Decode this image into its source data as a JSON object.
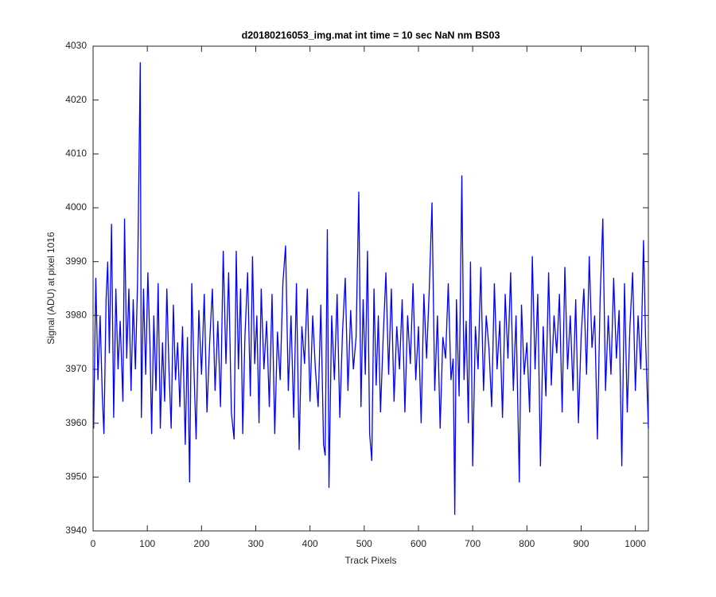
{
  "chart_data": {
    "type": "line",
    "title": "d20180216053_img.mat int time = 10 sec  NaN nm BS03",
    "x_label": "Track Pixels",
    "y_label": "Signal (ADU) at pixel 1016",
    "xlim": [
      0,
      1024
    ],
    "ylim": [
      3940,
      4030
    ],
    "xticks": [
      0,
      100,
      200,
      300,
      400,
      500,
      600,
      700,
      800,
      900,
      1000
    ],
    "yticks": [
      3940,
      3950,
      3960,
      3970,
      3980,
      3990,
      4000,
      4010,
      4020,
      4030
    ],
    "series": [
      {
        "color": "#0000ff",
        "x": [
          1,
          5,
          9,
          13,
          17,
          20,
          24,
          27,
          30,
          34,
          38,
          42,
          46,
          50,
          55,
          58,
          62,
          66,
          70,
          74,
          78,
          82,
          87,
          89,
          93,
          97,
          101,
          105,
          108,
          112,
          116,
          120,
          124,
          128,
          132,
          136,
          140,
          144,
          148,
          152,
          156,
          160,
          165,
          170,
          174,
          178,
          182,
          186,
          190,
          195,
          200,
          205,
          210,
          215,
          220,
          225,
          230,
          235,
          240,
          245,
          250,
          255,
          260,
          264,
          268,
          272,
          276,
          280,
          285,
          290,
          294,
          298,
          302,
          306,
          310,
          315,
          320,
          325,
          330,
          335,
          340,
          345,
          350,
          355,
          360,
          365,
          370,
          375,
          380,
          385,
          390,
          395,
          400,
          405,
          410,
          415,
          420,
          425,
          428,
          432,
          435,
          440,
          445,
          450,
          455,
          460,
          465,
          470,
          475,
          480,
          485,
          490,
          494,
          498,
          502,
          506,
          510,
          514,
          518,
          522,
          526,
          530,
          535,
          540,
          545,
          550,
          555,
          560,
          565,
          570,
          575,
          580,
          585,
          590,
          595,
          600,
          605,
          610,
          615,
          620,
          625,
          630,
          635,
          640,
          645,
          650,
          655,
          660,
          664,
          667,
          670,
          675,
          680,
          684,
          688,
          692,
          696,
          700,
          705,
          710,
          715,
          720,
          725,
          730,
          735,
          740,
          745,
          750,
          755,
          760,
          765,
          770,
          775,
          780,
          786,
          790,
          795,
          800,
          805,
          810,
          815,
          820,
          825,
          830,
          835,
          840,
          845,
          850,
          855,
          860,
          865,
          870,
          875,
          880,
          885,
          890,
          895,
          900,
          905,
          910,
          915,
          920,
          925,
          930,
          935,
          940,
          945,
          950,
          955,
          960,
          965,
          970,
          975,
          980,
          985,
          990,
          995,
          1000,
          1005,
          1010,
          1015,
          1019,
          1024
        ],
        "values": [
          3959,
          3987,
          3968,
          3980,
          3965,
          3958,
          3983,
          3990,
          3973,
          3997,
          3961,
          3985,
          3970,
          3979,
          3964,
          3998,
          3972,
          3985,
          3966,
          3983,
          3970,
          3986,
          4027,
          3961,
          3985,
          3969,
          3988,
          3974,
          3958,
          3980,
          3966,
          3986,
          3959,
          3975,
          3964,
          3985,
          3970,
          3959,
          3982,
          3968,
          3975,
          3963,
          3978,
          3956,
          3976,
          3949,
          3986,
          3970,
          3957,
          3981,
          3969,
          3984,
          3962,
          3975,
          3985,
          3966,
          3979,
          3963,
          3992,
          3971,
          3988,
          3962,
          3957,
          3992,
          3970,
          3985,
          3958,
          3976,
          3988,
          3965,
          3991,
          3971,
          3980,
          3960,
          3985,
          3970,
          3979,
          3963,
          3984,
          3958,
          3977,
          3968,
          3986,
          3993,
          3966,
          3980,
          3961,
          3986,
          3955,
          3978,
          3971,
          3985,
          3964,
          3980,
          3970,
          3963,
          3982,
          3956,
          3954,
          3996,
          3948,
          3980,
          3968,
          3984,
          3961,
          3977,
          3987,
          3966,
          3981,
          3970,
          3976,
          4003,
          3963,
          3983,
          3969,
          3992,
          3958,
          3953,
          3985,
          3967,
          3980,
          3962,
          3976,
          3988,
          3969,
          3985,
          3964,
          3978,
          3970,
          3983,
          3962,
          3980,
          3971,
          3986,
          3968,
          3978,
          3960,
          3984,
          3972,
          3985,
          4001,
          3966,
          3980,
          3959,
          3976,
          3972,
          3986,
          3968,
          3972,
          3943,
          3983,
          3965,
          4006,
          3968,
          3979,
          3960,
          3990,
          3952,
          3978,
          3970,
          3989,
          3966,
          3980,
          3974,
          3963,
          3986,
          3970,
          3979,
          3961,
          3984,
          3972,
          3988,
          3966,
          3980,
          3949,
          3982,
          3969,
          3975,
          3962,
          3991,
          3970,
          3984,
          3952,
          3978,
          3965,
          3988,
          3967,
          3980,
          3973,
          3984,
          3962,
          3989,
          3970,
          3980,
          3966,
          3983,
          3960,
          3976,
          3985,
          3969,
          3991,
          3974,
          3980,
          3957,
          3983,
          3998,
          3966,
          3980,
          3969,
          3987,
          3972,
          3981,
          3952,
          3986,
          3962,
          3978,
          3988,
          3966,
          3980,
          3970,
          3994,
          3975,
          3959
        ]
      }
    ]
  }
}
